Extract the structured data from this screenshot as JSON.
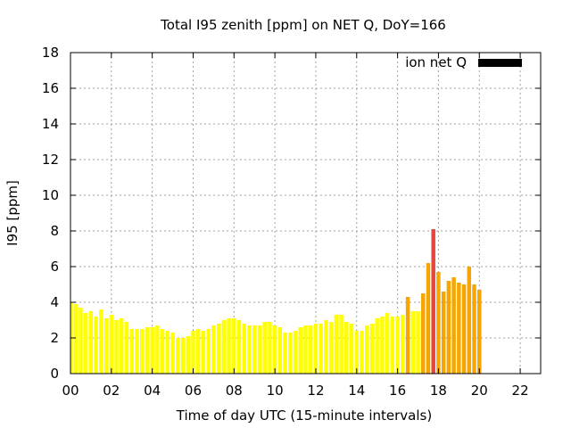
{
  "chart_data": {
    "type": "bar",
    "title": "Total I95 zenith [ppm] on NET Q, DoY=166",
    "xlabel": "Time of day UTC (15-minute intervals)",
    "ylabel": "I95 [ppm]",
    "xlim": [
      0,
      23
    ],
    "ylim": [
      0,
      18
    ],
    "xticks": [
      "00",
      "02",
      "04",
      "06",
      "08",
      "10",
      "12",
      "14",
      "16",
      "18",
      "20",
      "22"
    ],
    "yticks": [
      "0",
      "2",
      "4",
      "6",
      "8",
      "10",
      "12",
      "14",
      "16",
      "18"
    ],
    "grid": true,
    "legend": {
      "label": "ion net Q",
      "color": "#000000",
      "position": "top-right"
    },
    "interval_hours": 0.25,
    "color_scale": {
      "low": "#ffff00",
      "mid": "#f7a500",
      "high": "#e8453c"
    },
    "values": [
      4.0,
      3.9,
      3.7,
      3.4,
      3.5,
      3.2,
      3.6,
      3.1,
      3.3,
      3.0,
      3.1,
      2.9,
      2.5,
      2.5,
      2.5,
      2.6,
      2.6,
      2.7,
      2.5,
      2.4,
      2.3,
      2.0,
      2.0,
      2.1,
      2.4,
      2.5,
      2.4,
      2.5,
      2.7,
      2.8,
      3.0,
      3.1,
      3.1,
      3.0,
      2.8,
      2.7,
      2.7,
      2.7,
      2.9,
      2.9,
      2.7,
      2.6,
      2.3,
      2.3,
      2.4,
      2.6,
      2.7,
      2.7,
      2.8,
      2.8,
      3.0,
      2.9,
      3.3,
      3.3,
      2.9,
      2.8,
      2.4,
      2.4,
      2.7,
      2.8,
      3.1,
      3.2,
      3.4,
      3.2,
      3.2,
      3.3,
      4.3,
      3.5,
      3.5,
      4.5,
      6.2,
      8.1,
      5.7,
      4.6,
      5.2,
      5.4,
      5.1,
      5.0,
      6.0,
      5.0,
      4.7
    ]
  }
}
